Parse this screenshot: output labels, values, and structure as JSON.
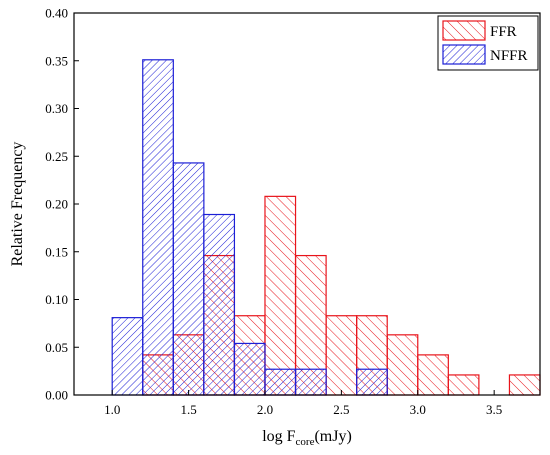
{
  "chart_data": {
    "type": "bar",
    "xlabel_main": "log F",
    "xlabel_sub": "core",
    "xlabel_unit": "(mJy)",
    "ylabel": "Relative Frequency",
    "xlim": [
      0.75,
      3.8
    ],
    "ylim": [
      0.0,
      0.4
    ],
    "x_ticks": [
      "1.0",
      "1.5",
      "2.0",
      "2.5",
      "3.0",
      "3.5"
    ],
    "y_ticks": [
      "0.00",
      "0.05",
      "0.10",
      "0.15",
      "0.20",
      "0.25",
      "0.30",
      "0.35",
      "0.40"
    ],
    "bin_width": 0.2,
    "grid": false,
    "legend_position": "top-right",
    "series": [
      {
        "name": "FFR",
        "color": "#e8141b",
        "hatch": "forward",
        "bins": [
          {
            "start": 1.2,
            "value": 0.042
          },
          {
            "start": 1.4,
            "value": 0.063
          },
          {
            "start": 1.6,
            "value": 0.146
          },
          {
            "start": 1.8,
            "value": 0.083
          },
          {
            "start": 2.0,
            "value": 0.208
          },
          {
            "start": 2.2,
            "value": 0.146
          },
          {
            "start": 2.4,
            "value": 0.083
          },
          {
            "start": 2.6,
            "value": 0.083
          },
          {
            "start": 2.8,
            "value": 0.063
          },
          {
            "start": 3.0,
            "value": 0.042
          },
          {
            "start": 3.2,
            "value": 0.021
          },
          {
            "start": 3.6,
            "value": 0.021
          }
        ]
      },
      {
        "name": "NFFR",
        "color": "#1c1fd6",
        "hatch": "back",
        "bins": [
          {
            "start": 1.0,
            "value": 0.081
          },
          {
            "start": 1.2,
            "value": 0.351
          },
          {
            "start": 1.4,
            "value": 0.243
          },
          {
            "start": 1.6,
            "value": 0.189
          },
          {
            "start": 1.8,
            "value": 0.054
          },
          {
            "start": 2.0,
            "value": 0.027
          },
          {
            "start": 2.2,
            "value": 0.027
          },
          {
            "start": 2.6,
            "value": 0.027
          }
        ]
      }
    ]
  }
}
